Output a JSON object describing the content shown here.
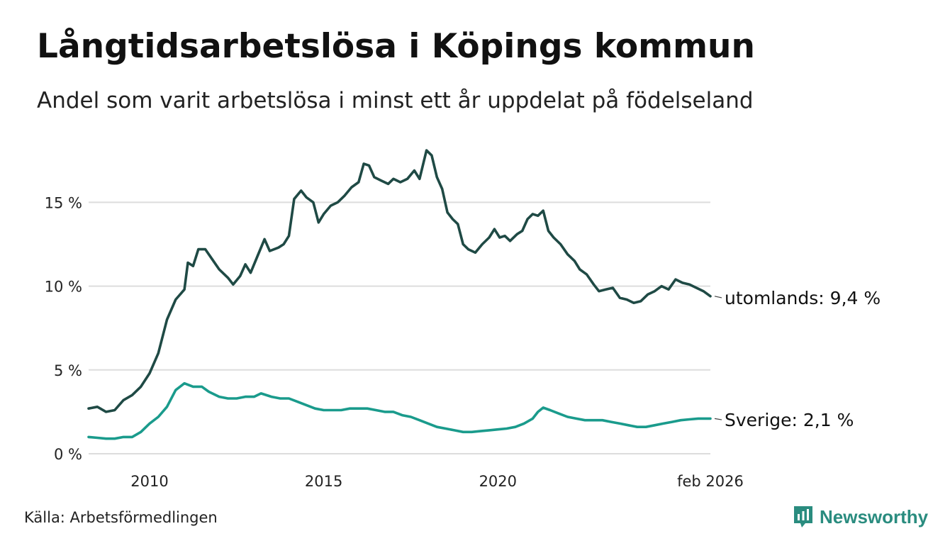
{
  "title": "Långtidsarbetslösa i Köpings kommun",
  "subtitle": "Andel som varit arbetslösa i minst ett år uppdelat på födelseland",
  "source": "Källa: Arbetsförmedlingen",
  "brand": {
    "name": "Newsworthy",
    "icon": "newsworthy-logo-icon"
  },
  "colors": {
    "utomlands": "#1f4a45",
    "sverige": "#1a9b8c",
    "grid": "#dddddd",
    "text": "#111111"
  },
  "chart_data": {
    "type": "line",
    "title": "Långtidsarbetslösa i Köpings kommun",
    "xlabel": "",
    "ylabel": "",
    "xlim": [
      2008.25,
      2026.1
    ],
    "ylim": [
      0,
      18
    ],
    "y_ticks": [
      0,
      5,
      10,
      15
    ],
    "y_tick_labels": [
      "0 %",
      "5 %",
      "10 %",
      "15 %"
    ],
    "x_ticks": [
      2010,
      2015,
      2020,
      2026.1
    ],
    "x_tick_labels": [
      "2010",
      "2015",
      "2020",
      "feb 2026"
    ],
    "grid": true,
    "series": [
      {
        "name": "utomlands",
        "end_label": "utomlands: 9,4 %",
        "points": [
          [
            2008.25,
            2.7
          ],
          [
            2008.5,
            2.8
          ],
          [
            2008.75,
            2.5
          ],
          [
            2009.0,
            2.6
          ],
          [
            2009.25,
            3.2
          ],
          [
            2009.5,
            3.5
          ],
          [
            2009.75,
            4.0
          ],
          [
            2010.0,
            4.8
          ],
          [
            2010.25,
            6.0
          ],
          [
            2010.5,
            8.0
          ],
          [
            2010.75,
            9.2
          ],
          [
            2011.0,
            9.8
          ],
          [
            2011.1,
            11.4
          ],
          [
            2011.25,
            11.2
          ],
          [
            2011.4,
            12.2
          ],
          [
            2011.6,
            12.2
          ],
          [
            2011.8,
            11.6
          ],
          [
            2012.0,
            11.0
          ],
          [
            2012.25,
            10.5
          ],
          [
            2012.4,
            10.1
          ],
          [
            2012.6,
            10.6
          ],
          [
            2012.75,
            11.3
          ],
          [
            2012.9,
            10.8
          ],
          [
            2013.1,
            11.8
          ],
          [
            2013.3,
            12.8
          ],
          [
            2013.45,
            12.1
          ],
          [
            2013.7,
            12.3
          ],
          [
            2013.85,
            12.5
          ],
          [
            2014.0,
            13.0
          ],
          [
            2014.15,
            15.2
          ],
          [
            2014.35,
            15.7
          ],
          [
            2014.5,
            15.3
          ],
          [
            2014.7,
            15.0
          ],
          [
            2014.85,
            13.8
          ],
          [
            2015.0,
            14.3
          ],
          [
            2015.2,
            14.8
          ],
          [
            2015.4,
            15.0
          ],
          [
            2015.6,
            15.4
          ],
          [
            2015.8,
            15.9
          ],
          [
            2016.0,
            16.2
          ],
          [
            2016.15,
            17.3
          ],
          [
            2016.3,
            17.2
          ],
          [
            2016.45,
            16.5
          ],
          [
            2016.65,
            16.3
          ],
          [
            2016.85,
            16.1
          ],
          [
            2017.0,
            16.4
          ],
          [
            2017.2,
            16.2
          ],
          [
            2017.4,
            16.4
          ],
          [
            2017.6,
            16.9
          ],
          [
            2017.75,
            16.4
          ],
          [
            2017.95,
            18.1
          ],
          [
            2018.1,
            17.8
          ],
          [
            2018.25,
            16.5
          ],
          [
            2018.4,
            15.8
          ],
          [
            2018.55,
            14.4
          ],
          [
            2018.7,
            14.0
          ],
          [
            2018.85,
            13.7
          ],
          [
            2019.0,
            12.5
          ],
          [
            2019.15,
            12.2
          ],
          [
            2019.35,
            12.0
          ],
          [
            2019.55,
            12.5
          ],
          [
            2019.75,
            12.9
          ],
          [
            2019.9,
            13.4
          ],
          [
            2020.05,
            12.9
          ],
          [
            2020.2,
            13.0
          ],
          [
            2020.35,
            12.7
          ],
          [
            2020.55,
            13.1
          ],
          [
            2020.7,
            13.3
          ],
          [
            2020.85,
            14.0
          ],
          [
            2021.0,
            14.3
          ],
          [
            2021.15,
            14.2
          ],
          [
            2021.3,
            14.5
          ],
          [
            2021.45,
            13.3
          ],
          [
            2021.6,
            12.9
          ],
          [
            2021.8,
            12.5
          ],
          [
            2022.0,
            11.9
          ],
          [
            2022.2,
            11.5
          ],
          [
            2022.35,
            11.0
          ],
          [
            2022.55,
            10.7
          ],
          [
            2022.75,
            10.1
          ],
          [
            2022.9,
            9.7
          ],
          [
            2023.1,
            9.8
          ],
          [
            2023.3,
            9.9
          ],
          [
            2023.5,
            9.3
          ],
          [
            2023.7,
            9.2
          ],
          [
            2023.9,
            9.0
          ],
          [
            2024.1,
            9.1
          ],
          [
            2024.3,
            9.5
          ],
          [
            2024.5,
            9.7
          ],
          [
            2024.7,
            10.0
          ],
          [
            2024.9,
            9.8
          ],
          [
            2025.1,
            10.4
          ],
          [
            2025.3,
            10.2
          ],
          [
            2025.5,
            10.1
          ],
          [
            2025.7,
            9.9
          ],
          [
            2025.9,
            9.7
          ],
          [
            2026.1,
            9.4
          ]
        ]
      },
      {
        "name": "Sverige",
        "end_label": "Sverige: 2,1 %",
        "points": [
          [
            2008.25,
            1.0
          ],
          [
            2008.5,
            0.95
          ],
          [
            2008.75,
            0.9
          ],
          [
            2009.0,
            0.9
          ],
          [
            2009.25,
            1.0
          ],
          [
            2009.5,
            1.0
          ],
          [
            2009.75,
            1.3
          ],
          [
            2010.0,
            1.8
          ],
          [
            2010.25,
            2.2
          ],
          [
            2010.5,
            2.8
          ],
          [
            2010.75,
            3.8
          ],
          [
            2011.0,
            4.2
          ],
          [
            2011.25,
            4.0
          ],
          [
            2011.5,
            4.0
          ],
          [
            2011.7,
            3.7
          ],
          [
            2012.0,
            3.4
          ],
          [
            2012.25,
            3.3
          ],
          [
            2012.5,
            3.3
          ],
          [
            2012.75,
            3.4
          ],
          [
            2013.0,
            3.4
          ],
          [
            2013.2,
            3.6
          ],
          [
            2013.5,
            3.4
          ],
          [
            2013.75,
            3.3
          ],
          [
            2014.0,
            3.3
          ],
          [
            2014.25,
            3.1
          ],
          [
            2014.5,
            2.9
          ],
          [
            2014.75,
            2.7
          ],
          [
            2015.0,
            2.6
          ],
          [
            2015.25,
            2.6
          ],
          [
            2015.5,
            2.6
          ],
          [
            2015.75,
            2.7
          ],
          [
            2016.0,
            2.7
          ],
          [
            2016.25,
            2.7
          ],
          [
            2016.5,
            2.6
          ],
          [
            2016.75,
            2.5
          ],
          [
            2017.0,
            2.5
          ],
          [
            2017.25,
            2.3
          ],
          [
            2017.5,
            2.2
          ],
          [
            2017.75,
            2.0
          ],
          [
            2018.0,
            1.8
          ],
          [
            2018.25,
            1.6
          ],
          [
            2018.5,
            1.5
          ],
          [
            2018.75,
            1.4
          ],
          [
            2019.0,
            1.3
          ],
          [
            2019.25,
            1.3
          ],
          [
            2019.5,
            1.35
          ],
          [
            2019.75,
            1.4
          ],
          [
            2020.0,
            1.45
          ],
          [
            2020.25,
            1.5
          ],
          [
            2020.5,
            1.6
          ],
          [
            2020.75,
            1.8
          ],
          [
            2021.0,
            2.1
          ],
          [
            2021.15,
            2.5
          ],
          [
            2021.3,
            2.75
          ],
          [
            2021.5,
            2.6
          ],
          [
            2021.75,
            2.4
          ],
          [
            2022.0,
            2.2
          ],
          [
            2022.25,
            2.1
          ],
          [
            2022.5,
            2.0
          ],
          [
            2022.75,
            2.0
          ],
          [
            2023.0,
            2.0
          ],
          [
            2023.25,
            1.9
          ],
          [
            2023.5,
            1.8
          ],
          [
            2023.75,
            1.7
          ],
          [
            2024.0,
            1.6
          ],
          [
            2024.25,
            1.6
          ],
          [
            2024.5,
            1.7
          ],
          [
            2024.75,
            1.8
          ],
          [
            2025.0,
            1.9
          ],
          [
            2025.25,
            2.0
          ],
          [
            2025.5,
            2.05
          ],
          [
            2025.75,
            2.1
          ],
          [
            2026.1,
            2.1
          ]
        ]
      }
    ]
  }
}
